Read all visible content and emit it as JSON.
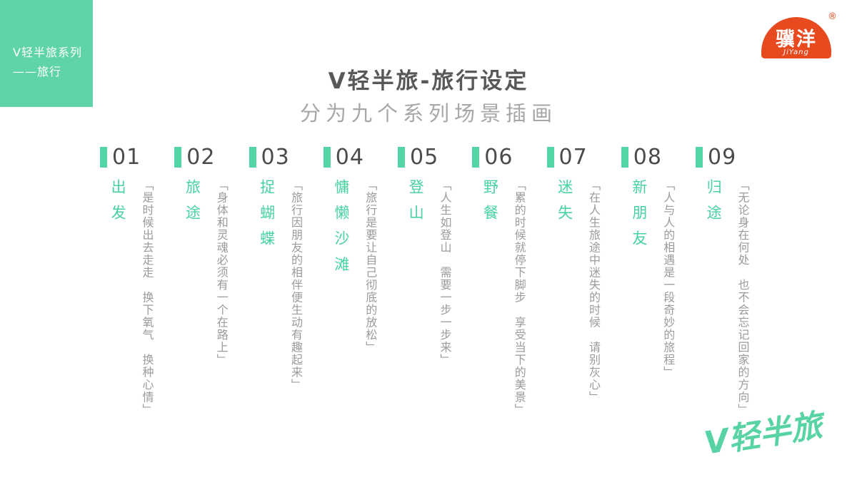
{
  "theme": {
    "background": "#ffffff",
    "accent_green": "#5fd4a8",
    "title_green": "#47d2a0",
    "brand_red": "#e84a20",
    "heading_gray": "#58585a",
    "subtitle_gray": "#a7a7a8",
    "number_gray": "#4b4b4d",
    "quote_gray": "#9b9b9c"
  },
  "sidebar": {
    "line1": "V轻半旅系列",
    "line2": "——旅行"
  },
  "brand": {
    "name": "骥洋",
    "latin": "JiYang",
    "registered": "®"
  },
  "header": {
    "title": "V轻半旅-旅行设定",
    "subtitle": "分为九个系列场景插画"
  },
  "scenes": [
    {
      "num": "01",
      "title": "出发",
      "desc": "「是时候出去走走　换下氧气　换种心情」"
    },
    {
      "num": "02",
      "title": "旅途",
      "desc": "「身体和灵魂必须有一个在路上」"
    },
    {
      "num": "03",
      "title": "捉蝴蝶",
      "desc": "「旅行因朋友的相伴便生动有趣起来」"
    },
    {
      "num": "04",
      "title": "慵懒沙滩",
      "desc": "「旅行是要让自己彻底的放松」"
    },
    {
      "num": "05",
      "title": "登山",
      "desc": "「人生如登山　需要一步一步来」"
    },
    {
      "num": "06",
      "title": "野餐",
      "desc": "「累的时候就停下脚步　享受当下的美景」"
    },
    {
      "num": "07",
      "title": "迷失",
      "desc": "「在人生旅途中迷失的时候　请别灰心」"
    },
    {
      "num": "08",
      "title": "新朋友",
      "desc": "「人与人的相遇是一段奇妙的旅程」"
    },
    {
      "num": "09",
      "title": "归途",
      "desc": "「无论身在何处　也不会忘记回家的方向」"
    }
  ],
  "footer": {
    "logo_text": "V轻半旅"
  }
}
